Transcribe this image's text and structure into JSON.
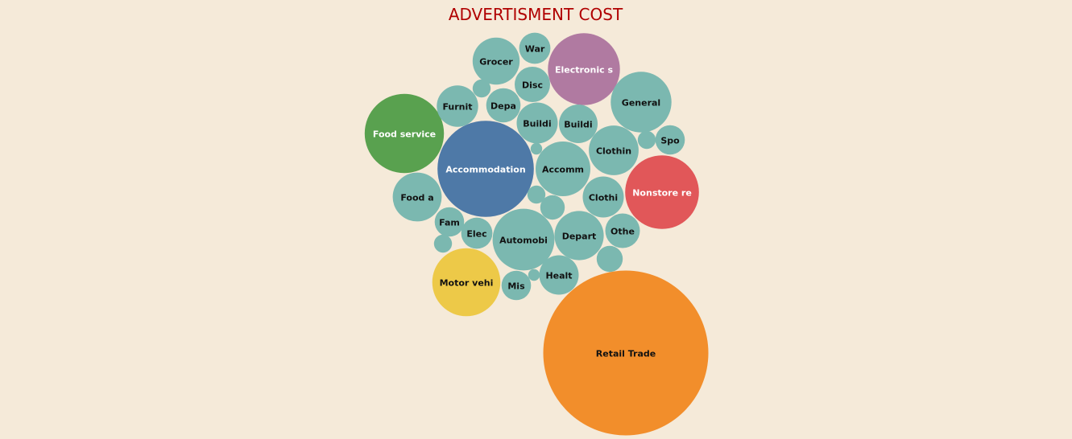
{
  "chart_data": {
    "type": "bubble",
    "title": "ADVERTISMENT COST",
    "legend": "none",
    "colors": {
      "default": "#7bb8b0",
      "background": "#f5ead9",
      "title": "#b00000"
    },
    "bubbles": [
      {
        "label": "Retail Trade",
        "value": 100,
        "color": "#f28e2b",
        "text_color": "#111111"
      },
      {
        "label": "Accommodation",
        "value": 34,
        "color": "#4e79a7",
        "text_color": "#ffffff"
      },
      {
        "label": "Food service",
        "value": 23,
        "color": "#59a14f",
        "text_color": "#ffffff"
      },
      {
        "label": "Electronic s",
        "value": 19,
        "color": "#b07aa1",
        "text_color": "#ffffff"
      },
      {
        "label": "Nonstore re",
        "value": 20,
        "color": "#e15759",
        "text_color": "#ffffff"
      },
      {
        "label": "Motor vehi",
        "value": 17,
        "color": "#edc948",
        "text_color": "#111111"
      },
      {
        "label": "General",
        "value": 13.5,
        "color": "#7bb8b0",
        "text_color": "#111111"
      },
      {
        "label": "Automobi",
        "value": 14,
        "color": "#7bb8b0",
        "text_color": "#111111"
      },
      {
        "label": "Accomm",
        "value": 11,
        "color": "#7bb8b0",
        "text_color": "#111111"
      },
      {
        "label": "Depart",
        "value": 8.9,
        "color": "#7bb8b0",
        "text_color": "#111111"
      },
      {
        "label": "Clothin",
        "value": 9.1,
        "color": "#7bb8b0",
        "text_color": "#111111"
      },
      {
        "label": "Grocer",
        "value": 8.1,
        "color": "#7bb8b0",
        "text_color": "#111111"
      },
      {
        "label": "Buildi",
        "value": 6.2,
        "color": "#7bb8b0",
        "text_color": "#111111"
      },
      {
        "label": "Clothi",
        "value": 6.2,
        "color": "#7bb8b0",
        "text_color": "#111111"
      },
      {
        "label": "Food a",
        "value": 8.8,
        "color": "#7bb8b0",
        "text_color": "#111111"
      },
      {
        "label": "Furnit",
        "value": 6.3,
        "color": "#7bb8b0",
        "text_color": "#111111"
      },
      {
        "label": "Buildi",
        "value": 5.5,
        "color": "#7bb8b0",
        "text_color": "#111111"
      },
      {
        "label": "Healt",
        "value": 5.7,
        "color": "#7bb8b0",
        "text_color": "#111111"
      },
      {
        "label": "Depa",
        "value": 4.3,
        "color": "#7bb8b0",
        "text_color": "#111111"
      },
      {
        "label": "Disc",
        "value": 4.6,
        "color": "#7bb8b0",
        "text_color": "#111111"
      },
      {
        "label": "Othe",
        "value": 4.4,
        "color": "#7bb8b0",
        "text_color": "#111111"
      },
      {
        "label": "Elec",
        "value": 3.6,
        "color": "#7bb8b0",
        "text_color": "#111111"
      },
      {
        "label": "Fam",
        "value": 3.2,
        "color": "#7bb8b0",
        "text_color": "#111111"
      },
      {
        "label": "War",
        "value": 3.6,
        "color": "#7bb8b0",
        "text_color": "#111111"
      },
      {
        "label": "Mis",
        "value": 3.2,
        "color": "#7bb8b0",
        "text_color": "#111111"
      },
      {
        "label": "Spo",
        "value": 3.2,
        "color": "#7bb8b0",
        "text_color": "#111111"
      },
      {
        "label": "",
        "value": 2.5,
        "color": "#7bb8b0",
        "text_color": "#111111"
      },
      {
        "label": "",
        "value": 2.2,
        "color": "#7bb8b0",
        "text_color": "#111111"
      },
      {
        "label": "",
        "value": 1.2,
        "color": "#7bb8b0",
        "text_color": "#111111"
      },
      {
        "label": "",
        "value": 1.2,
        "color": "#7bb8b0",
        "text_color": "#111111"
      },
      {
        "label": "",
        "value": 1.2,
        "color": "#7bb8b0",
        "text_color": "#111111"
      },
      {
        "label": "",
        "value": 1.2,
        "color": "#7bb8b0",
        "text_color": "#111111"
      },
      {
        "label": "",
        "value": 0.5,
        "color": "#7bb8b0",
        "text_color": "#111111"
      },
      {
        "label": "",
        "value": 0.5,
        "color": "#7bb8b0",
        "text_color": "#111111"
      }
    ]
  }
}
